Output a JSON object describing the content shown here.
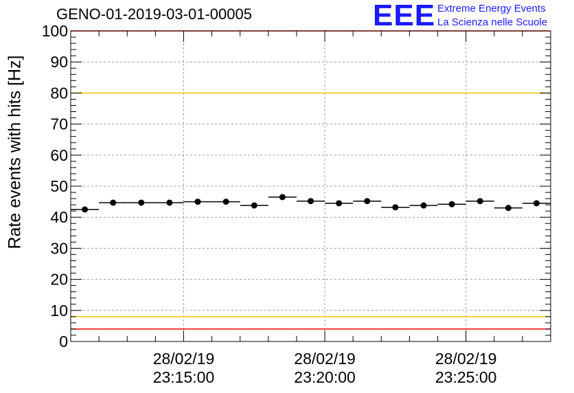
{
  "header": {
    "title": "GENO-01-2019-03-01-00005",
    "logo_text": "EEE",
    "logo_line1": "Extreme Energy Events",
    "logo_line2": "La Scienza nelle Scuole"
  },
  "colors": {
    "logo": "#1a1aff",
    "upper_limit_line": "#ff0000",
    "warning_line": "#f0c800",
    "markers": "#000000",
    "grid": "#999999"
  },
  "chart_data": {
    "type": "scatter",
    "title": "GENO-01-2019-03-01-00005",
    "xlabel": "",
    "ylabel": "Rate events with hits [Hz]",
    "ylim": [
      0,
      100
    ],
    "yticks": [
      0,
      10,
      20,
      30,
      40,
      50,
      60,
      70,
      80,
      90,
      100
    ],
    "x_unit": "minutes",
    "xlim": [
      "28/02/19 23:11:00",
      "28/02/19 23:28:00"
    ],
    "xtick_labels": [
      {
        "date": "28/02/19",
        "time": "23:15:00",
        "x": "28/02/19 23:15:00"
      },
      {
        "date": "28/02/19",
        "time": "23:20:00",
        "x": "28/02/19 23:20:00"
      },
      {
        "date": "28/02/19",
        "time": "23:25:00",
        "x": "28/02/19 23:25:00"
      }
    ],
    "grid": true,
    "series": [
      {
        "points": [
          {
            "x": "28/02/19 23:11:30",
            "y": 42.5
          },
          {
            "x": "28/02/19 23:12:30",
            "y": 44.7
          },
          {
            "x": "28/02/19 23:13:30",
            "y": 44.7
          },
          {
            "x": "28/02/19 23:14:30",
            "y": 44.7
          },
          {
            "x": "28/02/19 23:15:30",
            "y": 45.0
          },
          {
            "x": "28/02/19 23:16:30",
            "y": 45.0
          },
          {
            "x": "28/02/19 23:17:30",
            "y": 43.8
          },
          {
            "x": "28/02/19 23:18:30",
            "y": 46.5
          },
          {
            "x": "28/02/19 23:19:30",
            "y": 45.2
          },
          {
            "x": "28/02/19 23:20:30",
            "y": 44.5
          },
          {
            "x": "28/02/19 23:21:30",
            "y": 45.2
          },
          {
            "x": "28/02/19 23:22:30",
            "y": 43.2
          },
          {
            "x": "28/02/19 23:23:30",
            "y": 43.8
          },
          {
            "x": "28/02/19 23:24:30",
            "y": 44.2
          },
          {
            "x": "28/02/19 23:25:30",
            "y": 45.2
          },
          {
            "x": "28/02/19 23:26:30",
            "y": 43.0
          },
          {
            "x": "28/02/19 23:27:30",
            "y": 44.5
          }
        ]
      }
    ],
    "reference_lines": [
      {
        "y": 100,
        "color": "#ff0000"
      },
      {
        "y": 80,
        "color": "#f0c800"
      },
      {
        "y": 8,
        "color": "#f0c800"
      },
      {
        "y": 4,
        "color": "#ff0000"
      }
    ]
  }
}
